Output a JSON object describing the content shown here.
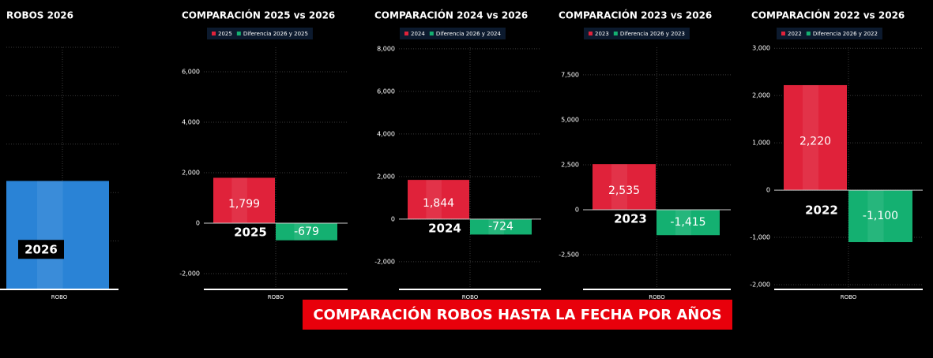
{
  "chart_data": [
    {
      "type": "bar",
      "title": "ROBOS 2026",
      "categories": [
        "ROBO"
      ],
      "series": [
        {
          "name": "2026",
          "color": "#2a83d6",
          "values": [
            1120
          ]
        }
      ],
      "ylim": [
        0,
        2500
      ],
      "yticks": [
        0,
        500,
        1000,
        1500,
        2000,
        2500
      ],
      "show_tick_labels": false,
      "grid": true,
      "legend": false
    },
    {
      "type": "bar",
      "title": "COMPARACIÓN 2025 vs 2026",
      "categories": [
        "ROBO"
      ],
      "series": [
        {
          "name": "2025",
          "color": "#e0223a",
          "values": [
            1799
          ],
          "value_labels": [
            "1,799"
          ]
        },
        {
          "name": "Diferencia 2026 y 2025",
          "color": "#14b071",
          "values": [
            -679
          ]
        }
      ],
      "ylim": [
        -2625,
        6970
      ],
      "yticks": [
        {
          "value": -2000,
          "label": "-2,000"
        },
        0,
        {
          "value": 2000,
          "label": "2,000"
        },
        {
          "value": 4000,
          "label": "4,000"
        },
        {
          "value": 6000,
          "label": "6,000"
        }
      ],
      "show_tick_labels": true,
      "grid": true,
      "legend": true
    },
    {
      "type": "bar",
      "title": "COMPARACIÓN 2024 vs 2026",
      "categories": [
        "ROBO"
      ],
      "series": [
        {
          "name": "2024",
          "color": "#e0223a",
          "values": [
            1844
          ],
          "value_labels": [
            "1,844"
          ]
        },
        {
          "name": "Diferencia 2026 y 2024",
          "color": "#14b071",
          "values": [
            -724
          ]
        }
      ],
      "ylim": [
        -3300,
        8070
      ],
      "yticks": [
        {
          "value": -2000,
          "label": "-2,000"
        },
        0,
        {
          "value": 2000,
          "label": "2,000"
        },
        {
          "value": 4000,
          "label": "4,000"
        },
        {
          "value": 6000,
          "label": "6,000"
        },
        {
          "value": 8000,
          "label": "8,000"
        }
      ],
      "show_tick_labels": true,
      "grid": true,
      "legend": true
    },
    {
      "type": "bar",
      "title": "COMPARACIÓN 2023 vs 2026",
      "categories": [
        "ROBO"
      ],
      "series": [
        {
          "name": "2023",
          "color": "#e0223a",
          "values": [
            2535
          ],
          "value_labels": [
            "2,535"
          ]
        },
        {
          "name": "Diferencia 2026 y 2023",
          "color": "#14b071",
          "values": [
            -1415
          ],
          "value_labels": [
            "-1,415"
          ]
        }
      ],
      "ylim": [
        -4430,
        9030
      ],
      "yticks": [
        {
          "value": -2500,
          "label": "-2,500"
        },
        0,
        {
          "value": 2500,
          "label": "2,500"
        },
        {
          "value": 5000,
          "label": "5,000"
        },
        {
          "value": 7500,
          "label": "7,500"
        }
      ],
      "show_tick_labels": true,
      "grid": true,
      "legend": true
    },
    {
      "type": "bar",
      "title": "COMPARACIÓN 2022 vs 2026",
      "categories": [
        "ROBO"
      ],
      "series": [
        {
          "name": "2022",
          "color": "#e0223a",
          "values": [
            2220
          ],
          "value_labels": [
            "2,220"
          ]
        },
        {
          "name": "Diferencia 2026 y 2022",
          "color": "#14b071",
          "values": [
            -1100
          ],
          "value_labels": [
            "-1,100"
          ]
        }
      ],
      "ylim": [
        -2100,
        3020
      ],
      "yticks": [
        {
          "value": -2000,
          "label": "-2,000"
        },
        {
          "value": -1000,
          "label": "-1,000"
        },
        0,
        {
          "value": 1000,
          "label": "1,000"
        },
        {
          "value": 2000,
          "label": "2,000"
        },
        {
          "value": 3000,
          "label": "3,000"
        }
      ],
      "show_tick_labels": true,
      "grid": true,
      "legend": true
    }
  ],
  "banner": "COMPARACIÓN ROBOS HASTA LA FECHA POR AÑOS"
}
